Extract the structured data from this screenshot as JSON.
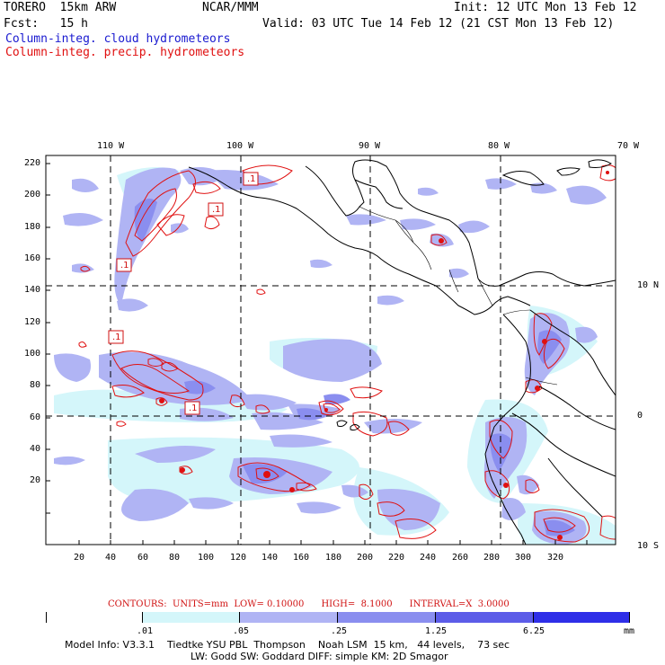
{
  "header": {
    "model": "TORERO  15km ARW",
    "org": "NCAR/MMM",
    "init": "Init: 12 UTC Mon 13 Feb 12",
    "fcst": "Fcst:   15 h",
    "valid": "Valid: 03 UTC Tue 14 Feb 12 (21 CST Mon 13 Feb 12)"
  },
  "legend": {
    "cloud": "Column-integ. cloud hydrometeors",
    "precip": "Column-integ. precip. hydrometeors"
  },
  "top_ticks": [
    "110 W",
    "100 W",
    "90 W",
    "80 W",
    "70 W"
  ],
  "right_ticks": [
    "10 N",
    "0",
    "10 S"
  ],
  "left_ticks": [
    "220",
    "200",
    "180",
    "160",
    "140",
    "120",
    "100",
    "80",
    "60",
    "40",
    "20"
  ],
  "bottom_ticks": [
    "20",
    "40",
    "60",
    "80",
    "100",
    "120",
    "140",
    "160",
    "180",
    "200",
    "220",
    "240",
    "260",
    "280",
    "300",
    "320"
  ],
  "contour_labels": [
    ".1",
    ".1",
    ".1",
    ".1",
    ".1"
  ],
  "contours_info": "CONTOURS:  UNITS=mm  LOW= 0.10000      HIGH=  8.1000      INTERVAL=X  3.0000",
  "colorbar": {
    "labels": [
      ".01",
      ".05",
      ".25",
      "1.25",
      "6.25",
      "mm"
    ],
    "colors": [
      "#ffffff",
      "#d4f6fa",
      "#b0b4f4",
      "#8a8eef",
      "#5c5ce8",
      "#3232e6",
      "#1010e8"
    ]
  },
  "footer": {
    "line1": "Model Info: V3.3.1    Tiedtke YSU PBL  Thompson    Noah LSM  15 km,   44 levels,    73 sec",
    "line2": "LW: Godd SW: Goddard DIFF: simple KM: 2D Smagor"
  },
  "colors": {
    "cloud_text": "#1a1ad0",
    "precip_text": "#e01010",
    "precip_contour": "#e01010"
  }
}
